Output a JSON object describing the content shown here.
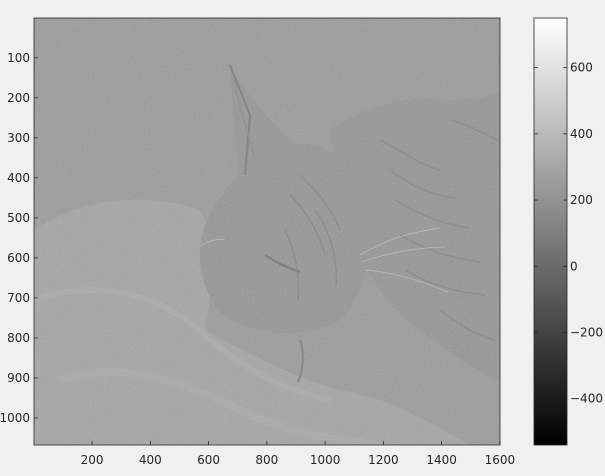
{
  "chart_data": {
    "type": "heatmap",
    "title": "",
    "xlabel": "",
    "ylabel": "",
    "image_content": "grayscale high-frequency detail image of a sleeping tabby cat on a fluffy blanket",
    "xlim": [
      1,
      1600
    ],
    "ylim": [
      1,
      1067
    ],
    "y_direction": "reversed",
    "x_ticks": [
      200,
      400,
      600,
      800,
      1000,
      1200,
      1400,
      1600
    ],
    "y_ticks": [
      100,
      200,
      300,
      400,
      500,
      600,
      700,
      800,
      900,
      1000
    ],
    "grid": false,
    "colormap": "gray",
    "colorbar": {
      "position": "right",
      "range": [
        -540,
        750
      ],
      "ticks": [
        -400,
        -200,
        0,
        200,
        400,
        600
      ]
    }
  },
  "colors": {
    "background": "#f0f0f0",
    "axes_edge": "#262626",
    "image_base": "#9a9a9a"
  }
}
